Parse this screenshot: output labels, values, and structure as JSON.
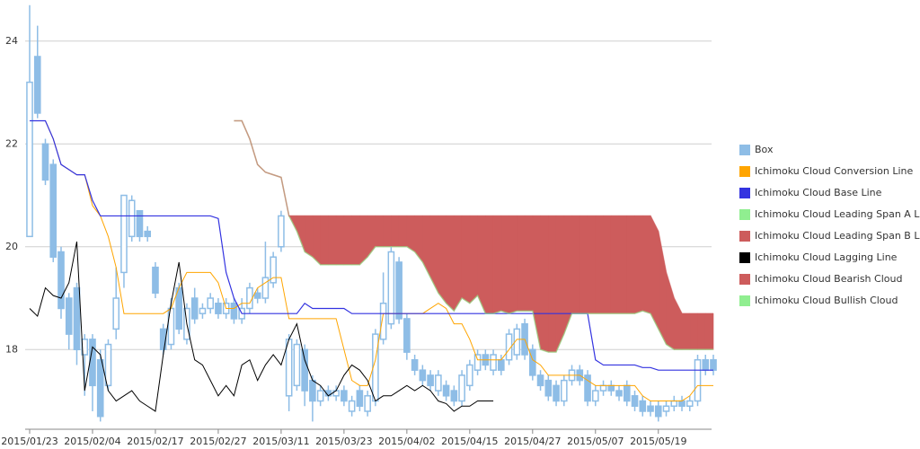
{
  "chart_data": {
    "type": "candlestick",
    "categories": [
      "2015/01/23",
      null,
      null,
      null,
      null,
      null,
      null,
      null,
      "2015/02/04",
      null,
      null,
      null,
      null,
      null,
      null,
      null,
      "2015/02/17",
      null,
      null,
      null,
      null,
      null,
      null,
      null,
      "2015/02/27",
      null,
      null,
      null,
      null,
      null,
      null,
      null,
      "2015/03/11",
      null,
      null,
      null,
      null,
      null,
      null,
      null,
      "2015/03/23",
      null,
      null,
      null,
      null,
      null,
      null,
      null,
      "2015/04/02",
      null,
      null,
      null,
      null,
      null,
      null,
      null,
      "2015/04/15",
      null,
      null,
      null,
      null,
      null,
      null,
      null,
      "2015/04/27",
      null,
      null,
      null,
      null,
      null,
      null,
      null,
      "2015/05/07",
      null,
      null,
      null,
      null,
      null,
      null,
      null,
      "2015/05/19",
      null,
      null,
      null,
      null,
      null,
      null,
      null
    ],
    "ylim": [
      16.45,
      24.8
    ],
    "yticks": [
      18,
      20,
      22,
      24
    ],
    "grid": true,
    "legend": "right",
    "series": [
      {
        "name": "Box",
        "color": "#8ebde6",
        "open": [
          20.2,
          23.7,
          22.0,
          21.6,
          19.9,
          19.0,
          19.2,
          17.9,
          18.2,
          17.8,
          17.3,
          18.4,
          19.5,
          20.2,
          20.7,
          20.3,
          19.6,
          18.4,
          18.1,
          19.2,
          18.2,
          19.0,
          18.7,
          18.8,
          18.9,
          18.7,
          18.9,
          18.6,
          18.8,
          19.1,
          19.0,
          19.3,
          20.0,
          17.1,
          17.3,
          18.0,
          17.4,
          17.0,
          17.2,
          17.1,
          17.2,
          16.8,
          17.2,
          16.8,
          17.0,
          18.2,
          18.5,
          19.7,
          18.6,
          17.8,
          17.6,
          17.5,
          17.2,
          17.3,
          17.2,
          17.0,
          17.3,
          17.6,
          17.9,
          17.6,
          17.8,
          17.8,
          17.9,
          18.5,
          18.0,
          17.5,
          17.4,
          17.3,
          17.0,
          17.4,
          17.6,
          17.5,
          17.0,
          17.2,
          17.3,
          17.2,
          17.3,
          17.1,
          17.0,
          16.9,
          16.9,
          16.8,
          16.9,
          17.0,
          16.9,
          17.0,
          17.8,
          17.8
        ],
        "high": [
          24.7,
          24.3,
          22.1,
          21.7,
          20.0,
          19.1,
          19.3,
          18.3,
          18.3,
          18.0,
          18.2,
          19.6,
          21.0,
          21.0,
          20.7,
          20.4,
          19.7,
          18.5,
          19.0,
          19.3,
          18.9,
          19.2,
          18.9,
          19.1,
          19.0,
          19.0,
          19.0,
          19.0,
          19.3,
          19.2,
          20.1,
          19.9,
          20.7,
          18.3,
          18.2,
          18.1,
          17.5,
          17.3,
          17.3,
          17.3,
          17.3,
          17.1,
          17.3,
          17.2,
          18.4,
          19.5,
          20.0,
          19.8,
          18.7,
          17.9,
          17.7,
          17.6,
          17.6,
          17.4,
          17.3,
          17.6,
          17.8,
          18.0,
          18.0,
          18.0,
          17.9,
          18.4,
          18.5,
          18.6,
          18.1,
          17.6,
          17.5,
          17.4,
          17.5,
          17.7,
          17.7,
          17.6,
          17.3,
          17.4,
          17.4,
          17.3,
          17.4,
          17.2,
          17.1,
          17.0,
          17.0,
          17.0,
          17.1,
          17.1,
          17.1,
          17.9,
          17.9,
          17.9
        ],
        "low": [
          20.2,
          22.5,
          21.2,
          19.7,
          18.6,
          18.0,
          17.7,
          17.1,
          16.8,
          16.6,
          17.2,
          18.2,
          19.2,
          20.1,
          20.1,
          20.1,
          19.0,
          17.9,
          18.0,
          18.3,
          18.1,
          18.5,
          18.6,
          18.7,
          18.6,
          18.6,
          18.5,
          18.5,
          18.7,
          18.9,
          18.9,
          19.2,
          19.9,
          16.8,
          17.2,
          16.9,
          16.6,
          16.9,
          17.0,
          17.0,
          16.9,
          16.7,
          16.8,
          16.7,
          16.9,
          18.1,
          18.4,
          18.5,
          17.8,
          17.5,
          17.3,
          17.2,
          17.1,
          17.0,
          16.9,
          16.9,
          17.2,
          17.5,
          17.6,
          17.5,
          17.5,
          17.7,
          17.8,
          17.8,
          17.4,
          17.2,
          17.0,
          16.9,
          16.9,
          17.3,
          17.3,
          16.9,
          16.9,
          17.1,
          17.1,
          17.0,
          16.9,
          16.8,
          16.7,
          16.7,
          16.6,
          16.7,
          16.8,
          16.8,
          16.8,
          16.9,
          17.5,
          17.5
        ],
        "close": [
          23.2,
          22.6,
          21.3,
          19.8,
          18.8,
          18.3,
          18.0,
          18.2,
          17.3,
          16.7,
          18.1,
          19.0,
          21.0,
          20.9,
          20.2,
          20.2,
          19.1,
          18.0,
          18.8,
          18.4,
          18.8,
          18.6,
          18.8,
          19.0,
          18.7,
          18.9,
          18.6,
          18.8,
          19.2,
          19.0,
          19.4,
          19.8,
          20.6,
          18.2,
          18.1,
          17.2,
          17.0,
          17.2,
          17.1,
          17.2,
          17.0,
          17.0,
          16.9,
          17.1,
          18.3,
          18.9,
          19.9,
          18.6,
          17.95,
          17.6,
          17.4,
          17.3,
          17.5,
          17.1,
          17.0,
          17.5,
          17.7,
          17.9,
          17.7,
          17.9,
          17.6,
          18.3,
          18.4,
          17.9,
          17.5,
          17.3,
          17.1,
          17.0,
          17.4,
          17.6,
          17.4,
          17.0,
          17.2,
          17.3,
          17.2,
          17.1,
          17.0,
          16.9,
          16.8,
          16.8,
          16.7,
          16.9,
          17.0,
          16.9,
          17.0,
          17.8,
          17.6,
          17.6
        ]
      },
      {
        "name": "Ichimoku Cloud Conversion Line",
        "color": "#ffa500",
        "values": [
          22.45,
          22.45,
          22.45,
          22.1,
          21.6,
          21.5,
          21.4,
          21.4,
          20.8,
          20.6,
          20.2,
          19.6,
          18.7,
          18.7,
          18.7,
          18.7,
          18.7,
          18.7,
          18.8,
          19.2,
          19.5,
          19.5,
          19.5,
          19.5,
          19.3,
          18.8,
          18.8,
          18.9,
          18.9,
          19.2,
          19.3,
          19.4,
          19.4,
          18.6,
          18.6,
          18.6,
          18.6,
          18.6,
          18.6,
          18.6,
          18.0,
          17.4,
          17.3,
          17.3,
          17.8,
          18.7,
          18.7,
          18.7,
          18.7,
          18.7,
          18.7,
          18.8,
          18.9,
          18.8,
          18.5,
          18.5,
          18.2,
          17.8,
          17.8,
          17.8,
          17.8,
          18.0,
          18.2,
          18.2,
          17.8,
          17.7,
          17.5,
          17.5,
          17.5,
          17.5,
          17.5,
          17.4,
          17.3,
          17.3,
          17.3,
          17.3,
          17.3,
          17.3,
          17.1,
          17.0,
          17.0,
          17.0,
          17.0,
          17.0,
          17.1,
          17.3,
          17.3,
          17.3
        ]
      },
      {
        "name": "Ichimoku Cloud Base Line",
        "color": "#3333e0",
        "values": [
          22.45,
          22.45,
          22.45,
          22.1,
          21.6,
          21.5,
          21.4,
          21.4,
          20.9,
          20.6,
          20.6,
          20.6,
          20.6,
          20.6,
          20.6,
          20.6,
          20.6,
          20.6,
          20.6,
          20.6,
          20.6,
          20.6,
          20.6,
          20.6,
          20.55,
          19.5,
          19.0,
          18.7,
          18.7,
          18.7,
          18.7,
          18.7,
          18.7,
          18.7,
          18.7,
          18.9,
          18.8,
          18.8,
          18.8,
          18.8,
          18.8,
          18.7,
          18.7,
          18.7,
          18.7,
          18.7,
          18.7,
          18.7,
          18.7,
          18.7,
          18.7,
          18.7,
          18.7,
          18.7,
          18.7,
          18.7,
          18.7,
          18.7,
          18.7,
          18.7,
          18.7,
          18.7,
          18.7,
          18.7,
          18.7,
          18.7,
          18.7,
          18.7,
          18.7,
          18.7,
          18.7,
          18.7,
          17.8,
          17.7,
          17.7,
          17.7,
          17.7,
          17.7,
          17.65,
          17.65,
          17.6,
          17.6,
          17.6,
          17.6,
          17.6,
          17.6,
          17.6,
          17.6
        ]
      },
      {
        "name": "Ichimoku Cloud Leading Span A Line",
        "color": "#90ee90",
        "values": [
          null,
          null,
          null,
          null,
          null,
          null,
          null,
          null,
          null,
          null,
          null,
          null,
          null,
          null,
          null,
          null,
          null,
          null,
          null,
          null,
          null,
          null,
          null,
          null,
          null,
          null,
          22.45,
          22.45,
          22.1,
          21.6,
          21.45,
          21.4,
          21.35,
          20.6,
          20.3,
          19.9,
          19.8,
          19.65,
          19.65,
          19.65,
          19.65,
          19.65,
          19.65,
          19.8,
          20.0,
          20.0,
          20.0,
          20.0,
          20.0,
          19.9,
          19.7,
          19.4,
          19.1,
          18.9,
          18.75,
          19.0,
          18.9,
          19.05,
          18.7,
          18.7,
          18.75,
          18.7,
          18.75,
          18.75,
          18.75,
          18.0,
          17.95,
          17.95,
          18.3,
          18.7,
          18.7,
          18.7,
          18.7,
          18.7,
          18.7,
          18.7,
          18.7,
          18.7,
          18.75,
          18.7,
          18.4,
          18.1,
          18.0,
          18.0,
          18.0,
          18.0,
          18.0,
          18.0
        ]
      },
      {
        "name": "Ichimoku Cloud Leading Span B Line",
        "color": "#cd5c5c",
        "values": [
          null,
          null,
          null,
          null,
          null,
          null,
          null,
          null,
          null,
          null,
          null,
          null,
          null,
          null,
          null,
          null,
          null,
          null,
          null,
          null,
          null,
          null,
          null,
          null,
          null,
          null,
          22.45,
          22.45,
          22.1,
          21.6,
          21.45,
          21.4,
          21.35,
          20.6,
          20.6,
          20.6,
          20.6,
          20.6,
          20.6,
          20.6,
          20.6,
          20.6,
          20.6,
          20.6,
          20.6,
          20.6,
          20.6,
          20.6,
          20.6,
          20.6,
          20.6,
          20.6,
          20.6,
          20.6,
          20.6,
          20.6,
          20.6,
          20.6,
          20.6,
          20.6,
          20.6,
          20.6,
          20.6,
          20.6,
          20.6,
          20.6,
          20.6,
          20.6,
          20.6,
          20.6,
          20.6,
          20.6,
          20.6,
          20.6,
          20.6,
          20.6,
          20.6,
          20.6,
          20.6,
          20.6,
          20.3,
          19.5,
          19.0,
          18.7,
          18.7,
          18.7,
          18.7,
          18.7
        ]
      },
      {
        "name": "Ichimoku Cloud Lagging Line",
        "color": "#000000",
        "values": [
          18.8,
          18.65,
          19.2,
          19.05,
          19.0,
          19.3,
          20.1,
          17.2,
          18.05,
          17.9,
          17.2,
          17.0,
          17.1,
          17.2,
          17.0,
          16.9,
          16.8,
          17.9,
          18.9,
          19.7,
          18.5,
          17.8,
          17.7,
          17.4,
          17.1,
          17.3,
          17.1,
          17.7,
          17.8,
          17.4,
          17.7,
          17.9,
          17.7,
          18.2,
          18.5,
          17.8,
          17.4,
          17.3,
          17.1,
          17.2,
          17.5,
          17.7,
          17.6,
          17.4,
          17.0,
          17.1,
          17.1,
          17.2,
          17.3,
          17.2,
          17.3,
          17.2,
          17.0,
          16.95,
          16.8,
          16.9,
          16.9,
          17.0,
          17.0,
          17.0,
          null,
          null,
          null,
          null,
          null,
          null,
          null,
          null,
          null,
          null,
          null,
          null,
          null,
          null,
          null,
          null,
          null,
          null,
          null,
          null,
          null,
          null,
          null,
          null,
          null,
          null,
          null,
          null
        ]
      },
      {
        "name": "Ichimoku Cloud Bearish Cloud",
        "color": "#cd5c5c"
      },
      {
        "name": "Ichimoku Cloud Bullish Cloud",
        "color": "#90ee90"
      }
    ]
  }
}
